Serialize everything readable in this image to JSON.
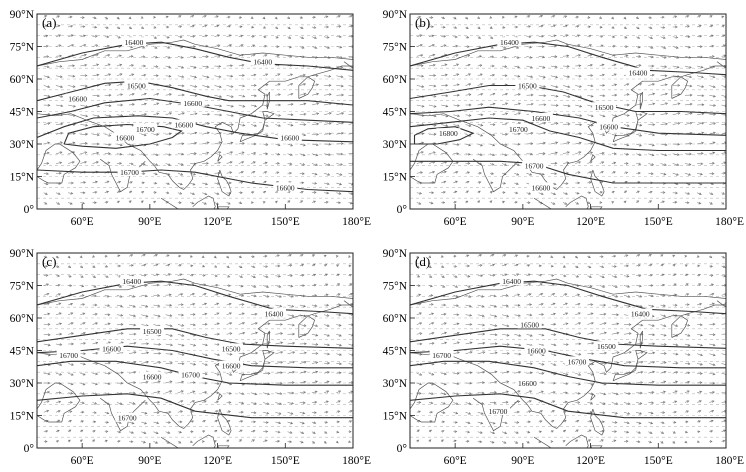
{
  "figure": {
    "lat_labels": [
      "90°N",
      "75°N",
      "60°N",
      "45°N",
      "30°N",
      "15°N",
      "0°"
    ],
    "lon_labels": [
      "60°E",
      "90°E",
      "120°E",
      "150°E",
      "180°E"
    ],
    "map_extent": {
      "lon_min": 40,
      "lon_max": 180,
      "lat_min": 0,
      "lat_max": 90
    },
    "colors": {
      "contour": "#333333",
      "coast": "#555555",
      "grid": "#b8b8b8",
      "wind": "#777777"
    },
    "panels": [
      {
        "label": "(a)",
        "contour_labels": [
          {
            "text": "16400",
            "lon": 83,
            "lat": 77
          },
          {
            "text": "16500",
            "lon": 84,
            "lat": 57
          },
          {
            "text": "16600",
            "lon": 58,
            "lat": 51
          },
          {
            "text": "16600",
            "lon": 109,
            "lat": 49
          },
          {
            "text": "16600",
            "lon": 105,
            "lat": 39
          },
          {
            "text": "16700",
            "lon": 88,
            "lat": 37
          },
          {
            "text": "16600",
            "lon": 79,
            "lat": 33
          },
          {
            "text": "16600",
            "lon": 152,
            "lat": 33
          },
          {
            "text": "16700",
            "lon": 81,
            "lat": 17
          },
          {
            "text": "16600",
            "lon": 150,
            "lat": 10
          },
          {
            "text": "16400",
            "lon": 140,
            "lat": 68
          }
        ]
      },
      {
        "label": "(b)",
        "contour_labels": [
          {
            "text": "16400",
            "lon": 84,
            "lat": 77
          },
          {
            "text": "16400",
            "lon": 141,
            "lat": 63
          },
          {
            "text": "16500",
            "lon": 92,
            "lat": 57
          },
          {
            "text": "16500",
            "lon": 126,
            "lat": 47
          },
          {
            "text": "16600",
            "lon": 98,
            "lat": 42
          },
          {
            "text": "16700",
            "lon": 88,
            "lat": 37
          },
          {
            "text": "16600",
            "lon": 128,
            "lat": 38
          },
          {
            "text": "16800",
            "lon": 57,
            "lat": 35
          },
          {
            "text": "16700",
            "lon": 95,
            "lat": 20
          },
          {
            "text": "16600",
            "lon": 98,
            "lat": 10
          }
        ]
      },
      {
        "label": "(c)",
        "contour_labels": [
          {
            "text": "16400",
            "lon": 82,
            "lat": 77
          },
          {
            "text": "16400",
            "lon": 145,
            "lat": 62
          },
          {
            "text": "16500",
            "lon": 91,
            "lat": 54
          },
          {
            "text": "16600",
            "lon": 73,
            "lat": 46
          },
          {
            "text": "16700",
            "lon": 54,
            "lat": 43
          },
          {
            "text": "16500",
            "lon": 126,
            "lat": 46
          },
          {
            "text": "16600",
            "lon": 126,
            "lat": 38
          },
          {
            "text": "16700",
            "lon": 108,
            "lat": 34
          },
          {
            "text": "16600",
            "lon": 91,
            "lat": 33
          },
          {
            "text": "16700",
            "lon": 80,
            "lat": 14
          }
        ]
      },
      {
        "label": "(d)",
        "contour_labels": [
          {
            "text": "16400",
            "lon": 85,
            "lat": 77
          },
          {
            "text": "16400",
            "lon": 142,
            "lat": 62
          },
          {
            "text": "16500",
            "lon": 93,
            "lat": 57
          },
          {
            "text": "16500",
            "lon": 127,
            "lat": 47
          },
          {
            "text": "16600",
            "lon": 96,
            "lat": 45
          },
          {
            "text": "16700",
            "lon": 54,
            "lat": 43
          },
          {
            "text": "16600",
            "lon": 92,
            "lat": 30
          },
          {
            "text": "16700",
            "lon": 114,
            "lat": 40
          },
          {
            "text": "16700",
            "lon": 79,
            "lat": 17
          }
        ]
      }
    ]
  }
}
